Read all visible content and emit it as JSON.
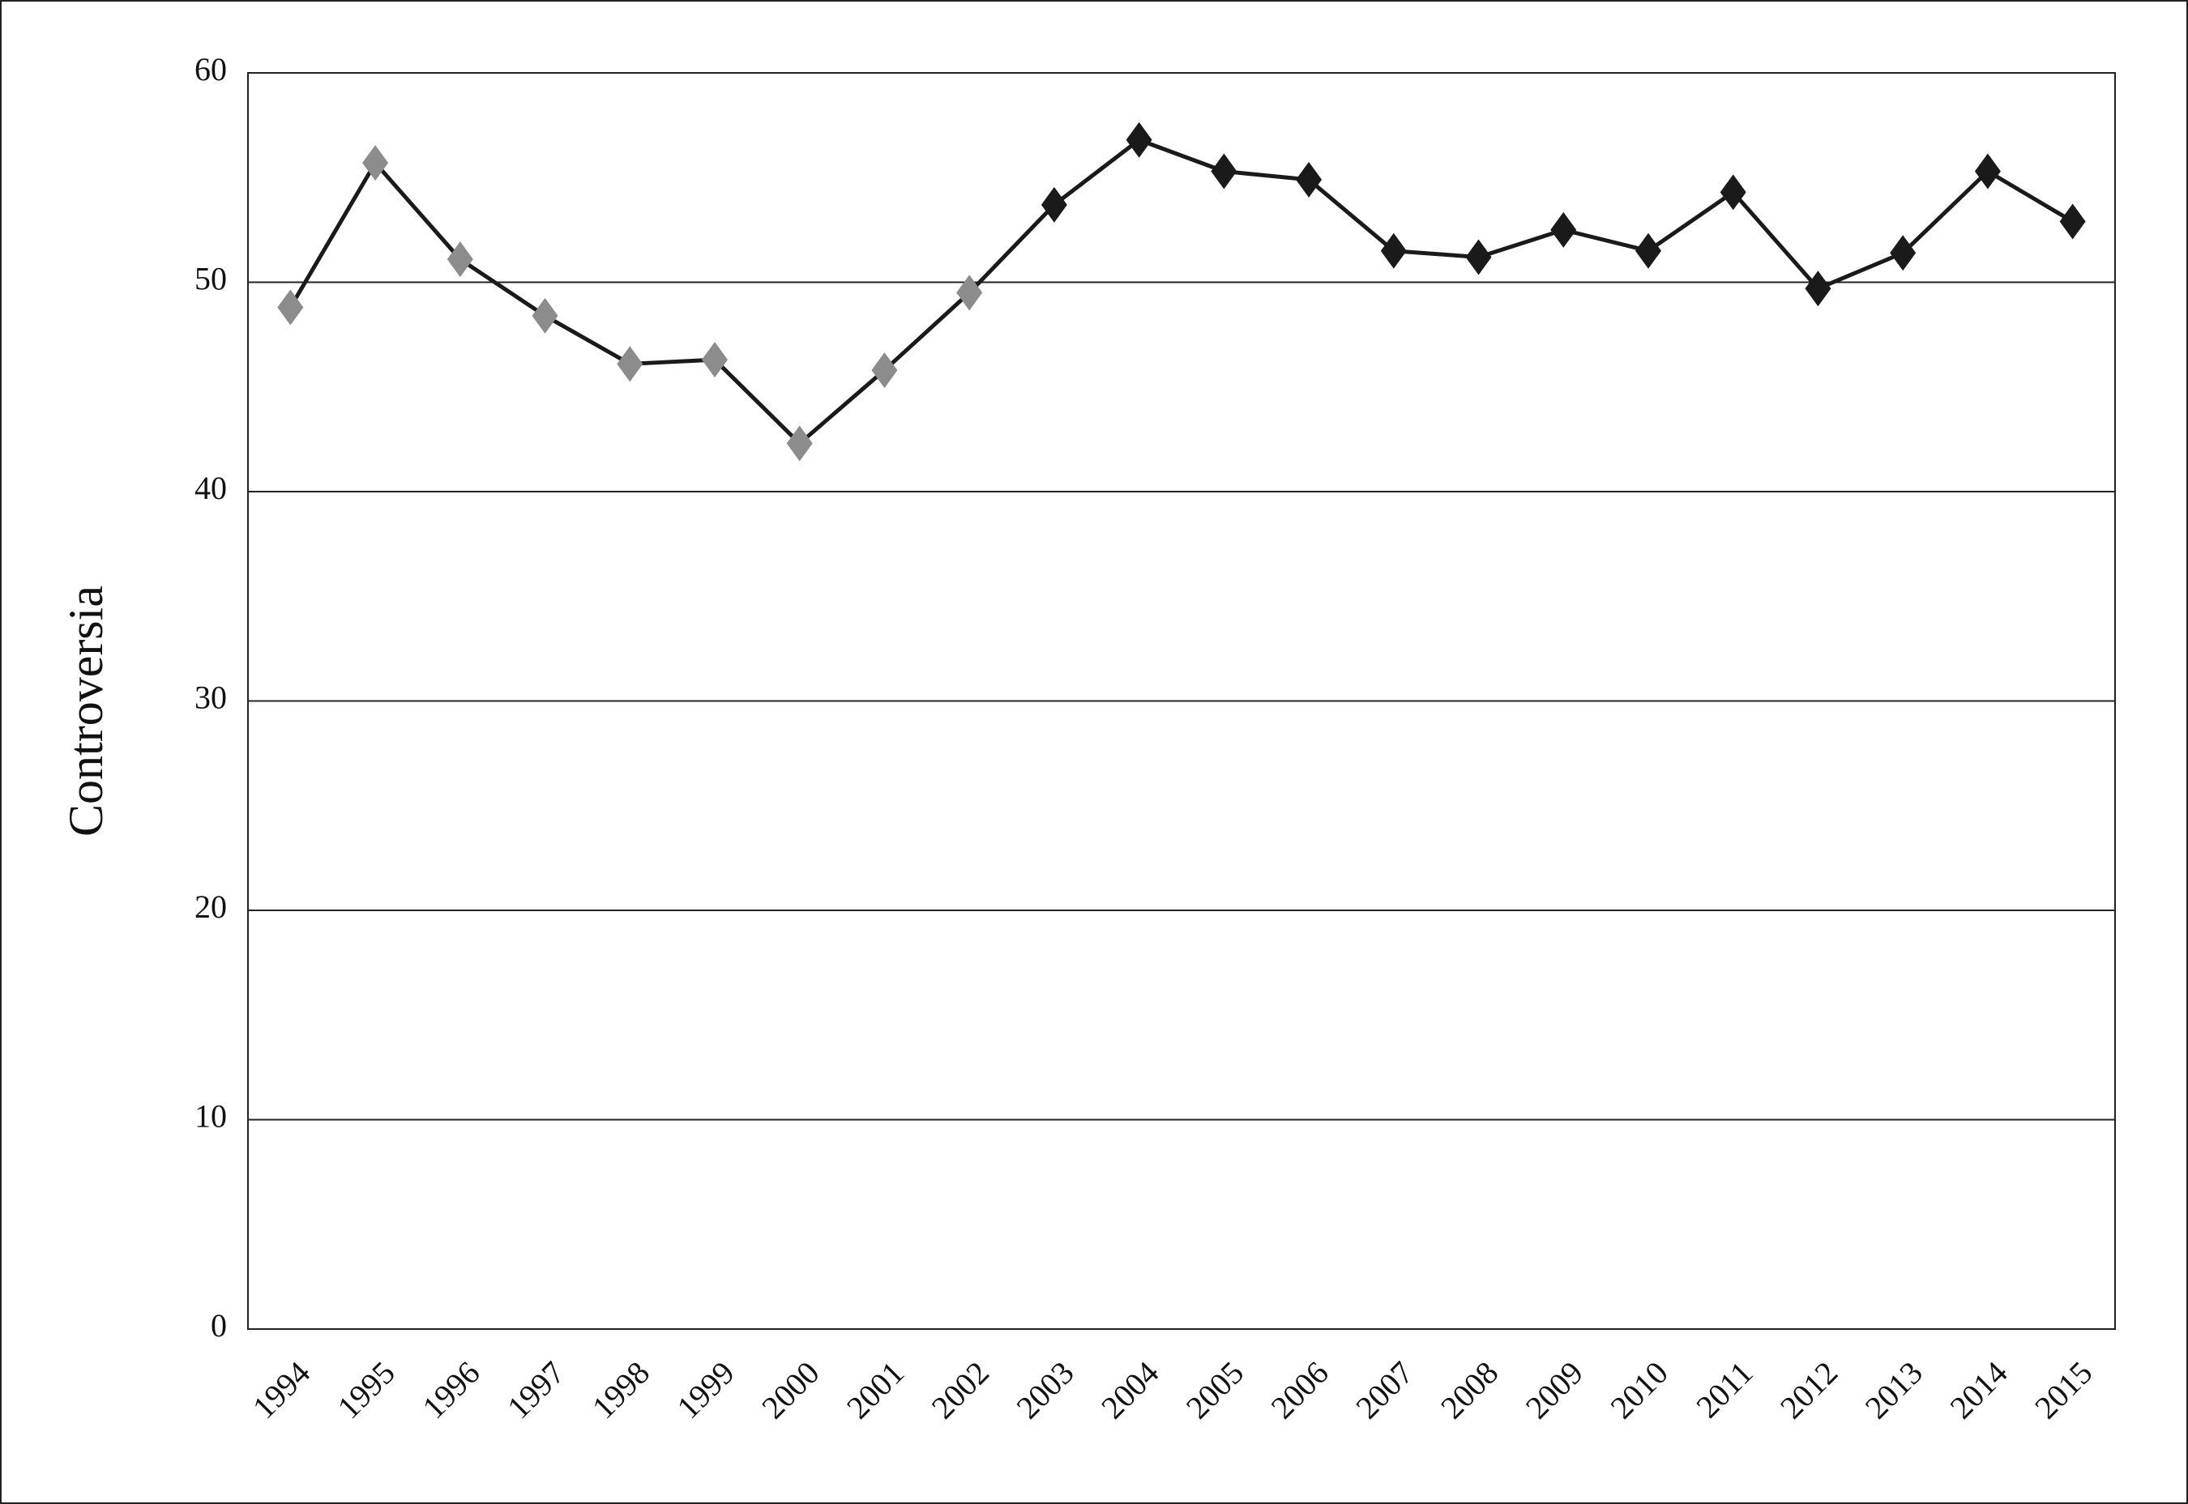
{
  "chart_data": {
    "type": "line",
    "y_label": "Controversia",
    "categories": [
      "1994",
      "1995",
      "1996",
      "1997",
      "1998",
      "1999",
      "2000",
      "2001",
      "2002",
      "2003",
      "2004",
      "2005",
      "2006",
      "2007",
      "2008",
      "2009",
      "2010",
      "2011",
      "2012",
      "2013",
      "2014",
      "2015"
    ],
    "series": [
      {
        "color": "#1a1a1a",
        "marker_colors": [
          "#8c8c8c",
          "#8c8c8c",
          "#8c8c8c",
          "#8c8c8c",
          "#8c8c8c",
          "#8c8c8c",
          "#8c8c8c",
          "#8c8c8c",
          "#8c8c8c",
          "#1a1a1a",
          "#1a1a1a",
          "#1a1a1a",
          "#1a1a1a",
          "#1a1a1a",
          "#1a1a1a",
          "#1a1a1a",
          "#1a1a1a",
          "#1a1a1a",
          "#1a1a1a",
          "#1a1a1a",
          "#1a1a1a",
          "#1a1a1a"
        ],
        "values": [
          48.8,
          55.7,
          51.1,
          48.4,
          46.1,
          46.3,
          42.3,
          45.8,
          49.5,
          53.7,
          56.8,
          55.3,
          54.9,
          51.5,
          51.2,
          52.5,
          51.5,
          54.3,
          49.7,
          51.4,
          55.3,
          52.9
        ]
      }
    ],
    "ylim": [
      0,
      60
    ],
    "yticks": [
      0,
      10,
      20,
      30,
      40,
      50,
      60
    ],
    "grid": true
  }
}
